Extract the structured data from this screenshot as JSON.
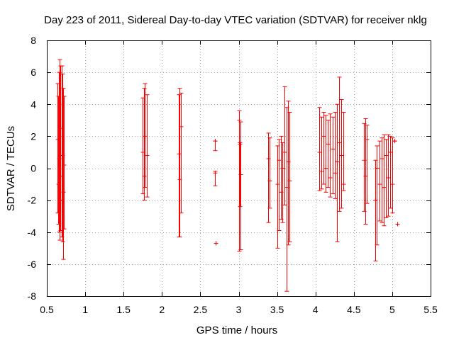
{
  "chart_data": {
    "type": "scatter",
    "style": "error-bars",
    "title": "Day 223 of 2011, Sidereal Day-to-day VTEC variation (SDTVAR) for receiver nklg",
    "xlabel": "GPS time / hours",
    "ylabel": "SDTVAR / TECUs",
    "xlim": [
      0.5,
      5.5
    ],
    "ylim": [
      -8,
      8
    ],
    "x_ticks": [
      0.5,
      1,
      1.5,
      2,
      2.5,
      3,
      3.5,
      4,
      4.5,
      5,
      5.5
    ],
    "x_tick_labels": [
      "0.5",
      "1",
      "1.5",
      "2",
      "2.5",
      "3",
      "3.5",
      "4",
      "4.5",
      "5",
      "5.5"
    ],
    "y_ticks": [
      -8,
      -6,
      -4,
      -2,
      0,
      2,
      4,
      6,
      8
    ],
    "y_tick_labels": [
      "-8",
      "-6",
      "-4",
      "-2",
      "0",
      "2",
      "4",
      "6",
      "8"
    ],
    "grid": true,
    "color": "#ff0000",
    "series": [
      {
        "name": "SDTVAR",
        "points": [
          {
            "x": 0.64,
            "y": 1.8,
            "low": -2.8,
            "high": 5.3
          },
          {
            "x": 0.65,
            "y": -1.0,
            "low": -3.5,
            "high": 4.5
          },
          {
            "x": 0.66,
            "y": 0.6,
            "low": -4.0,
            "high": 6.0
          },
          {
            "x": 0.67,
            "y": -2.0,
            "low": -4.5,
            "high": 6.8
          },
          {
            "x": 0.68,
            "y": 2.5,
            "low": -3.9,
            "high": 6.4
          },
          {
            "x": 0.69,
            "y": -0.5,
            "low": -4.3,
            "high": 6.4
          },
          {
            "x": 0.7,
            "y": 0.8,
            "low": -4.6,
            "high": 5.9
          },
          {
            "x": 0.71,
            "y": -1.5,
            "low": -5.7,
            "high": 5.0
          },
          {
            "x": 0.72,
            "y": 0.2,
            "low": -3.8,
            "high": 4.5
          },
          {
            "x": 1.75,
            "y": 1.0,
            "low": -1.6,
            "high": 4.4
          },
          {
            "x": 1.77,
            "y": -0.5,
            "low": -2.0,
            "high": 5.0
          },
          {
            "x": 1.78,
            "y": 2.0,
            "low": -1.2,
            "high": 5.3
          },
          {
            "x": 1.8,
            "y": 0.8,
            "low": -1.8,
            "high": 4.6
          },
          {
            "x": 2.22,
            "y": 0.9,
            "low": -4.3,
            "high": 4.6
          },
          {
            "x": 2.23,
            "y": -0.7,
            "low": -4.3,
            "high": 5.0
          },
          {
            "x": 2.25,
            "y": 2.6,
            "low": -2.8,
            "high": 4.7
          },
          {
            "x": 2.69,
            "y": 1.7,
            "low": 1.1,
            "high": 1.7
          },
          {
            "x": 2.69,
            "y": -0.3,
            "low": -1.1,
            "high": -0.2
          },
          {
            "x": 2.7,
            "y": -4.7,
            "low": -4.7,
            "high": -4.7
          },
          {
            "x": 3.0,
            "y": 3.0,
            "low": -5.2,
            "high": 3.6
          },
          {
            "x": 3.01,
            "y": 1.5,
            "low": -2.4,
            "high": 1.6
          },
          {
            "x": 3.02,
            "y": -0.4,
            "low": -5.1,
            "high": 2.9
          },
          {
            "x": 3.38,
            "y": 0.6,
            "low": -3.4,
            "high": 2.2
          },
          {
            "x": 3.4,
            "y": -0.8,
            "low": -2.5,
            "high": 1.9
          },
          {
            "x": 3.5,
            "y": -1.0,
            "low": -5.0,
            "high": 1.4
          },
          {
            "x": 3.52,
            "y": 0.5,
            "low": -3.9,
            "high": 1.8
          },
          {
            "x": 3.55,
            "y": -1.5,
            "low": -3.2,
            "high": 2.0
          },
          {
            "x": 3.57,
            "y": 0.0,
            "low": -3.4,
            "high": 1.6
          },
          {
            "x": 3.6,
            "y": 1.0,
            "low": -2.3,
            "high": 5.1
          },
          {
            "x": 3.62,
            "y": -1.2,
            "low": -7.7,
            "high": 3.8
          },
          {
            "x": 3.64,
            "y": 0.4,
            "low": -4.8,
            "high": 4.2
          },
          {
            "x": 3.66,
            "y": -0.8,
            "low": -4.6,
            "high": 3.5
          },
          {
            "x": 4.05,
            "y": 1.0,
            "low": -1.4,
            "high": 3.8
          },
          {
            "x": 4.08,
            "y": -0.2,
            "low": -1.3,
            "high": 3.2
          },
          {
            "x": 4.1,
            "y": 2.0,
            "low": -1.0,
            "high": 3.5
          },
          {
            "x": 4.13,
            "y": 0.0,
            "low": -1.5,
            "high": 3.3
          },
          {
            "x": 4.16,
            "y": 1.5,
            "low": -1.2,
            "high": 3.0
          },
          {
            "x": 4.19,
            "y": -0.6,
            "low": -1.8,
            "high": 3.4
          },
          {
            "x": 4.22,
            "y": 1.2,
            "low": -1.6,
            "high": 3.2
          },
          {
            "x": 4.25,
            "y": -0.3,
            "low": -1.9,
            "high": 3.5
          },
          {
            "x": 4.28,
            "y": 0.4,
            "low": -4.6,
            "high": 4.0
          },
          {
            "x": 4.31,
            "y": 1.6,
            "low": -2.7,
            "high": 5.7
          },
          {
            "x": 4.34,
            "y": 0.8,
            "low": -2.5,
            "high": 4.3
          },
          {
            "x": 4.36,
            "y": -1.0,
            "low": -1.4,
            "high": 3.5
          },
          {
            "x": 4.63,
            "y": 0.5,
            "low": -2.7,
            "high": 2.8
          },
          {
            "x": 4.65,
            "y": -0.5,
            "low": -3.5,
            "high": 3.1
          },
          {
            "x": 4.67,
            "y": 1.8,
            "low": -2.2,
            "high": 2.7
          },
          {
            "x": 4.78,
            "y": -2.0,
            "low": -5.8,
            "high": 0.5
          },
          {
            "x": 4.8,
            "y": 0.0,
            "low": -4.8,
            "high": 1.4
          },
          {
            "x": 4.83,
            "y": -1.0,
            "low": -3.3,
            "high": 1.7
          },
          {
            "x": 4.86,
            "y": 0.6,
            "low": -3.4,
            "high": 1.9
          },
          {
            "x": 4.89,
            "y": -1.2,
            "low": -3.6,
            "high": 2.1
          },
          {
            "x": 4.92,
            "y": 0.8,
            "low": -3.1,
            "high": 1.8
          },
          {
            "x": 4.95,
            "y": -0.6,
            "low": -3.0,
            "high": 2.1
          },
          {
            "x": 4.97,
            "y": 1.0,
            "low": -2.5,
            "high": 2.0
          },
          {
            "x": 5.0,
            "y": -1.0,
            "low": -2.8,
            "high": 1.9
          },
          {
            "x": 5.03,
            "y": 1.7,
            "low": 1.7,
            "high": 1.7
          },
          {
            "x": 5.07,
            "y": -3.5,
            "low": -3.5,
            "high": -3.5
          }
        ]
      }
    ]
  }
}
